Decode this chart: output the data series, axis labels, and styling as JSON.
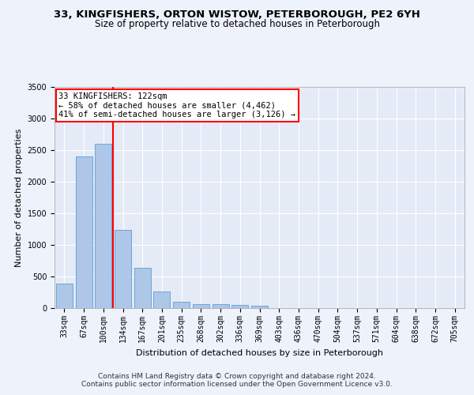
{
  "title_line1": "33, KINGFISHERS, ORTON WISTOW, PETERBOROUGH, PE2 6YH",
  "title_line2": "Size of property relative to detached houses in Peterborough",
  "xlabel": "Distribution of detached houses by size in Peterborough",
  "ylabel": "Number of detached properties",
  "footer_line1": "Contains HM Land Registry data © Crown copyright and database right 2024.",
  "footer_line2": "Contains public sector information licensed under the Open Government Licence v3.0.",
  "annotation_line1": "33 KINGFISHERS: 122sqm",
  "annotation_line2": "← 58% of detached houses are smaller (4,462)",
  "annotation_line3": "41% of semi-detached houses are larger (3,126) →",
  "categories": [
    "33sqm",
    "67sqm",
    "100sqm",
    "134sqm",
    "167sqm",
    "201sqm",
    "235sqm",
    "268sqm",
    "302sqm",
    "336sqm",
    "369sqm",
    "403sqm",
    "436sqm",
    "470sqm",
    "504sqm",
    "537sqm",
    "571sqm",
    "604sqm",
    "638sqm",
    "672sqm",
    "705sqm"
  ],
  "values": [
    390,
    2400,
    2600,
    1240,
    640,
    260,
    95,
    60,
    60,
    55,
    40,
    0,
    0,
    0,
    0,
    0,
    0,
    0,
    0,
    0,
    0
  ],
  "bar_color": "#aec6e8",
  "bar_edge_color": "#5a9fd4",
  "red_line_bar_index": 2,
  "ylim": [
    0,
    3500
  ],
  "yticks": [
    0,
    500,
    1000,
    1500,
    2000,
    2500,
    3000,
    3500
  ],
  "background_color": "#eef2fb",
  "plot_bg_color": "#e4eaf6",
  "grid_color": "#ffffff",
  "title_fontsize": 9.5,
  "subtitle_fontsize": 8.5,
  "axis_label_fontsize": 8,
  "tick_fontsize": 7,
  "annotation_fontsize": 7.5,
  "footer_fontsize": 6.5
}
